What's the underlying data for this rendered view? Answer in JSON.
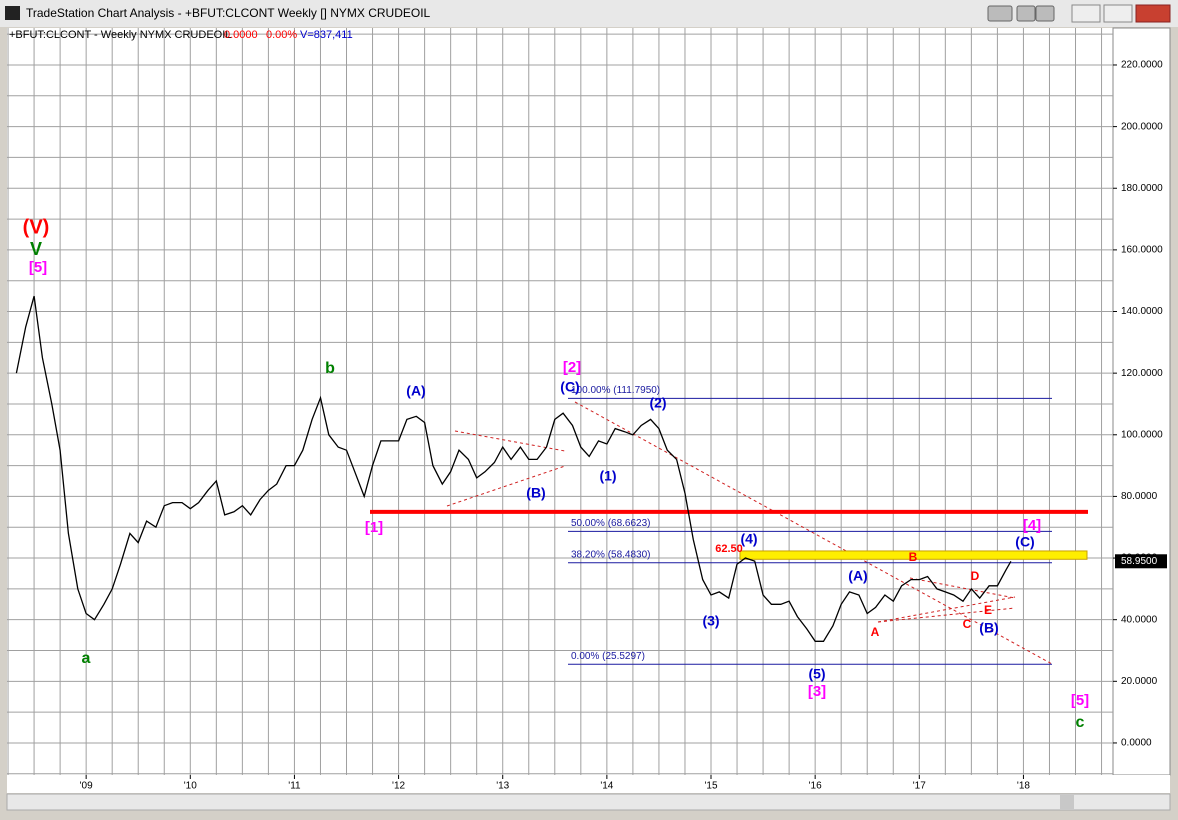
{
  "window_title": "TradeStation Chart Analysis - +BFUT:CLCONT Weekly [] NYMX CRUDEOIL",
  "chart_data": {
    "type": "line",
    "symbol_info": "+BFUT:CLCONT - Weekly  NYMX CRUDEOIL",
    "change": "0.0000",
    "change_pct": "0.00%",
    "volume": "V=837,411",
    "color": "#000000",
    "x": [
      2008.33,
      2008.42,
      2008.5,
      2008.58,
      2008.67,
      2008.75,
      2008.83,
      2008.92,
      2009.0,
      2009.08,
      2009.17,
      2009.25,
      2009.33,
      2009.42,
      2009.5,
      2009.58,
      2009.67,
      2009.75,
      2009.83,
      2009.92,
      2010.0,
      2010.08,
      2010.17,
      2010.25,
      2010.33,
      2010.42,
      2010.5,
      2010.58,
      2010.67,
      2010.75,
      2010.83,
      2010.92,
      2011.0,
      2011.08,
      2011.17,
      2011.25,
      2011.33,
      2011.42,
      2011.5,
      2011.58,
      2011.67,
      2011.75,
      2011.83,
      2011.92,
      2012.0,
      2012.08,
      2012.17,
      2012.25,
      2012.33,
      2012.42,
      2012.5,
      2012.58,
      2012.67,
      2012.75,
      2012.83,
      2012.92,
      2013.0,
      2013.08,
      2013.17,
      2013.25,
      2013.33,
      2013.42,
      2013.5,
      2013.58,
      2013.67,
      2013.75,
      2013.83,
      2013.92,
      2014.0,
      2014.08,
      2014.17,
      2014.25,
      2014.33,
      2014.42,
      2014.5,
      2014.58,
      2014.67,
      2014.75,
      2014.83,
      2014.92,
      2015.0,
      2015.08,
      2015.17,
      2015.25,
      2015.33,
      2015.42,
      2015.5,
      2015.58,
      2015.67,
      2015.75,
      2015.83,
      2015.92,
      2016.0,
      2016.08,
      2016.17,
      2016.25,
      2016.33,
      2016.42,
      2016.5,
      2016.58,
      2016.67,
      2016.75,
      2016.83,
      2016.92,
      2017.0,
      2017.08,
      2017.17,
      2017.25,
      2017.33,
      2017.42,
      2017.5,
      2017.58,
      2017.67,
      2017.75,
      2017.83,
      2017.88
    ],
    "values": [
      120,
      135,
      145,
      125,
      110,
      95,
      68,
      50,
      42,
      40,
      45,
      50,
      58,
      68,
      65,
      72,
      70,
      77,
      78,
      78,
      76,
      78,
      82,
      85,
      74,
      75,
      77,
      74,
      79,
      82,
      84,
      90,
      90,
      95,
      105,
      112,
      100,
      96,
      95,
      88,
      80,
      90,
      98,
      98,
      98,
      105,
      106,
      104,
      90,
      84,
      88,
      95,
      92,
      86,
      88,
      91,
      96,
      92,
      96,
      92,
      92,
      96,
      105,
      107,
      103,
      96,
      93,
      98,
      97,
      102,
      101,
      100,
      103,
      105,
      102,
      95,
      92,
      81,
      66,
      53,
      48,
      49,
      47,
      58,
      60,
      59,
      48,
      45,
      45,
      46,
      41,
      37,
      33,
      33,
      38,
      45,
      49,
      48,
      42,
      44,
      48,
      46,
      51,
      53,
      53,
      54,
      50,
      49,
      48,
      46,
      50,
      47,
      51,
      51,
      56,
      58.95
    ],
    "xlim": [
      2008.24,
      2018.86
    ],
    "ylim": [
      -10.4,
      232
    ],
    "xticks": [
      {
        "value": 2009,
        "label": "'09"
      },
      {
        "value": 2010,
        "label": "'10"
      },
      {
        "value": 2011,
        "label": "'11"
      },
      {
        "value": 2012,
        "label": "'12"
      },
      {
        "value": 2013,
        "label": "'13"
      },
      {
        "value": 2014,
        "label": "'14"
      },
      {
        "value": 2015,
        "label": "'15"
      },
      {
        "value": 2016,
        "label": "'16"
      },
      {
        "value": 2017,
        "label": "'17"
      },
      {
        "value": 2018,
        "label": "'18"
      }
    ],
    "yticks": [
      {
        "value": 0,
        "label": "0.0000"
      },
      {
        "value": 20,
        "label": "20.0000"
      },
      {
        "value": 40,
        "label": "40.0000"
      },
      {
        "value": 60,
        "label": "60.0000"
      },
      {
        "value": 80,
        "label": "80.0000"
      },
      {
        "value": 100,
        "label": "100.0000"
      },
      {
        "value": 120,
        "label": "120.0000"
      },
      {
        "value": 140,
        "label": "140.0000"
      },
      {
        "value": 160,
        "label": "160.0000"
      },
      {
        "value": 180,
        "label": "180.0000"
      },
      {
        "value": 200,
        "label": "200.0000"
      },
      {
        "value": 220,
        "label": "220.0000"
      }
    ],
    "ygrid": [
      -10,
      10,
      30,
      50,
      70,
      90,
      110,
      130,
      150,
      170,
      190,
      210,
      230
    ],
    "xgrid": [
      2008.25,
      2008.5,
      2008.75,
      2009.25,
      2009.5,
      2009.75,
      2010.25,
      2010.5,
      2010.75,
      2011.25,
      2011.5,
      2011.75,
      2012.25,
      2012.5,
      2012.75,
      2013.25,
      2013.5,
      2013.75,
      2014.25,
      2014.5,
      2014.75,
      2015.25,
      2015.5,
      2015.75,
      2016.25,
      2016.5,
      2016.75,
      2017.25,
      2017.5,
      2017.75,
      2018.25,
      2018.5,
      2018.75
    ],
    "grid": true,
    "fib_levels": [
      {
        "value": 111.795,
        "label": "100.00% (111.7950)"
      },
      {
        "value": 68.6623,
        "label": "50.00% (68.6623)"
      },
      {
        "value": 58.483,
        "label": "38.20% (58.4830)"
      },
      {
        "value": 25.5297,
        "label": "0.00% (25.5297)"
      }
    ],
    "fib_color": "#1a1aa0",
    "support_level": 75,
    "support_color": "#ff0000",
    "zone": [
      59.6,
      62.3
    ],
    "zone_color": "#ffee00",
    "last_price": {
      "value": 58.95,
      "label": "58.9500"
    },
    "annotations": [
      {
        "text": "(V)",
        "color": "#ff0000"
      },
      {
        "text": "V",
        "color": "#008000"
      },
      {
        "text": "[5]",
        "color": "#ff00ff"
      },
      {
        "text": "a",
        "color": "#008000"
      },
      {
        "text": "b",
        "color": "#008000"
      },
      {
        "text": "[1]",
        "color": "#ff00ff"
      },
      {
        "text": "(A)",
        "color": "#0000cc"
      },
      {
        "text": "(B)",
        "color": "#0000cc"
      },
      {
        "text": "[2]",
        "color": "#ff00ff"
      },
      {
        "text": "(C)",
        "color": "#0000cc"
      },
      {
        "text": "(1)",
        "color": "#0000cc"
      },
      {
        "text": "(2)",
        "color": "#0000cc"
      },
      {
        "text": "(3)",
        "color": "#0000cc"
      },
      {
        "text": "(4)",
        "color": "#0000cc"
      },
      {
        "text": "62.50",
        "color": "#ff0000"
      },
      {
        "text": "(5)",
        "color": "#0000cc"
      },
      {
        "text": "[3]",
        "color": "#ff00ff"
      },
      {
        "text": "(A)",
        "color": "#0000cc"
      },
      {
        "text": "A",
        "color": "#ff0000"
      },
      {
        "text": "B",
        "color": "#ff0000"
      },
      {
        "text": "C",
        "color": "#ff0000"
      },
      {
        "text": "D",
        "color": "#ff0000"
      },
      {
        "text": "E",
        "color": "#ff0000"
      },
      {
        "text": "(B)",
        "color": "#0000cc"
      },
      {
        "text": "(C)",
        "color": "#0000cc"
      },
      {
        "text": "[4]",
        "color": "#ff00ff"
      },
      {
        "text": "[5]",
        "color": "#ff00ff"
      },
      {
        "text": "c",
        "color": "#008000"
      }
    ]
  }
}
